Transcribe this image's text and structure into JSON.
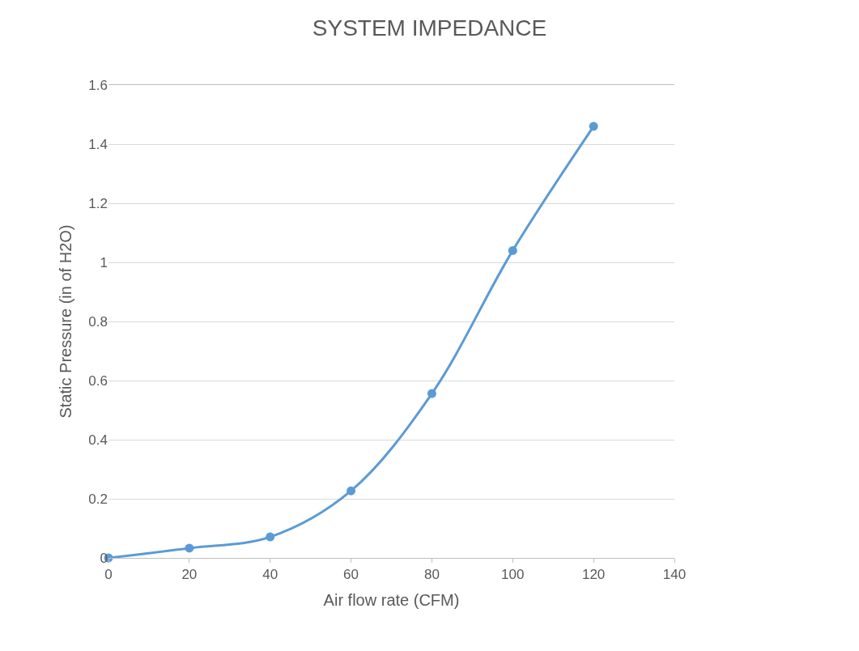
{
  "chart_data": {
    "type": "line",
    "title": "SYSTEM IMPEDANCE",
    "xlabel": "Air flow rate (CFM)",
    "ylabel": "Static Pressure (in of H2O)",
    "x": [
      0,
      20,
      40,
      60,
      80,
      100,
      120
    ],
    "series": [
      {
        "color": "#5b9bd5",
        "values": [
          0,
          0.033,
          0.071,
          0.227,
          0.556,
          1.04,
          1.46
        ]
      }
    ],
    "xlim": [
      0,
      140
    ],
    "xticks": [
      0,
      20,
      40,
      60,
      80,
      100,
      120,
      140
    ],
    "ylim": [
      0,
      1.6
    ],
    "yticks": [
      0,
      0.2,
      0.4,
      0.6,
      0.8,
      1,
      1.2,
      1.4,
      1.6
    ],
    "grid": "y",
    "marker": "circle",
    "line_style": "solid"
  }
}
